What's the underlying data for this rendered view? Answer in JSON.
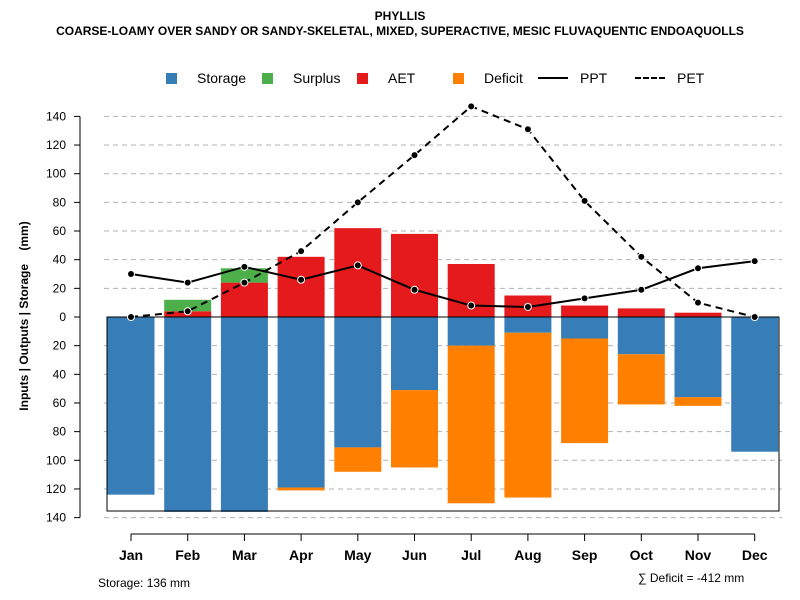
{
  "chart_data": {
    "type": "bar",
    "title": "PHYLLIS",
    "subtitle": "COARSE-LOAMY OVER SANDY OR SANDY-SKELETAL, MIXED, SUPERACTIVE, MESIC FLUVAQUENTIC ENDOAQUOLLS",
    "ylabel": "Inputs | Outputs | Storage    (mm)",
    "xlabel": "",
    "categories": [
      "Jan",
      "Feb",
      "Mar",
      "Apr",
      "May",
      "Jun",
      "Jul",
      "Aug",
      "Sep",
      "Oct",
      "Nov",
      "Dec"
    ],
    "ylim": [
      -140,
      150
    ],
    "yticks": [
      140,
      120,
      100,
      80,
      60,
      40,
      20,
      0,
      -20,
      -40,
      -60,
      -80,
      -100,
      -120,
      -140
    ],
    "ytick_labels": [
      "140",
      "120",
      "100",
      "80",
      "60",
      "40",
      "20",
      "0",
      "20",
      "40",
      "60",
      "80",
      "100",
      "120",
      "140"
    ],
    "grid": true,
    "legend_position": "top",
    "legend": [
      {
        "label": "Storage",
        "kind": "box",
        "color": "#377eb8"
      },
      {
        "label": "Surplus",
        "kind": "box",
        "color": "#4daf4a"
      },
      {
        "label": "AET",
        "kind": "box",
        "color": "#e41a1c"
      },
      {
        "label": "Deficit",
        "kind": "box",
        "color": "#ff7f00"
      },
      {
        "label": "PPT",
        "kind": "solid-line",
        "color": "#000000"
      },
      {
        "label": "PET",
        "kind": "dashed-line",
        "color": "#000000"
      }
    ],
    "series": [
      {
        "name": "AET",
        "values": [
          0,
          4,
          24,
          42,
          62,
          58,
          37,
          15,
          8,
          6,
          3,
          0
        ],
        "color": "#e41a1c"
      },
      {
        "name": "Surplus",
        "values": [
          0,
          8,
          10,
          0,
          0,
          0,
          0,
          0,
          0,
          0,
          0,
          0
        ],
        "color": "#4daf4a"
      },
      {
        "name": "Storage",
        "values": [
          124,
          136,
          136,
          119,
          91,
          51,
          20,
          11,
          15,
          26,
          56,
          94
        ],
        "color": "#377eb8"
      },
      {
        "name": "Deficit",
        "values": [
          0,
          0,
          0,
          2,
          17,
          54,
          110,
          115,
          73,
          35,
          6,
          0
        ],
        "color": "#ff7f00"
      },
      {
        "name": "PPT",
        "values": [
          30,
          24,
          35,
          26,
          36,
          19,
          8,
          7,
          13,
          19,
          34,
          39
        ],
        "color": "#000000"
      },
      {
        "name": "PET",
        "values": [
          0,
          4,
          24,
          46,
          80,
          113,
          147,
          131,
          81,
          42,
          10,
          0
        ],
        "color": "#000000"
      }
    ]
  },
  "footer": {
    "storage_note": "Storage: 136 mm",
    "deficit_note": "∑ Deficit = -412 mm"
  }
}
